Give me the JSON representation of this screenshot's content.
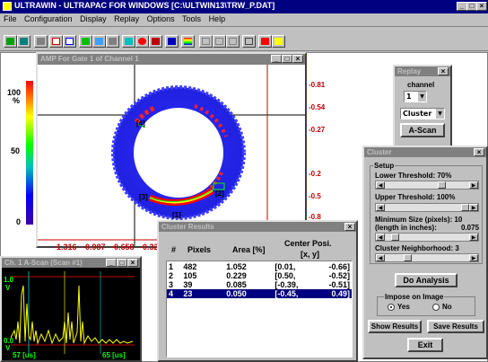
{
  "app": {
    "title": "ULTRAWIN - ULTRAPAC FOR WINDOWS  [C:\\ULTWIN13\\TRW_P.DAT]",
    "menu": [
      "File",
      "Configuration",
      "Display",
      "Replay",
      "Options",
      "Tools",
      "Help"
    ]
  },
  "scale": {
    "top_label": "100",
    "top_unit": "%",
    "mid_label": "50",
    "bottom_label": "0"
  },
  "amp_window": {
    "title": "AMP For Gate 1 of Channel 1",
    "right_labels": [
      "-0.81",
      "-0.54",
      "-0.27",
      "-0.2",
      "-0.5",
      "-0.8"
    ],
    "bottom_labels": [
      "-1.316",
      "-0.987",
      "-0.658",
      "-0.329"
    ],
    "cluster_labels": [
      "[1]",
      "[2]",
      "[3]",
      "[4]"
    ]
  },
  "replay": {
    "title": "Replay",
    "channel_label": "channel",
    "channel_value": "1",
    "mode_value": "Cluster",
    "ascan_button": "A-Scan"
  },
  "cluster_dialog": {
    "title": "Cluster",
    "setup_label": "Setup",
    "lower_threshold": "Lower Threshold:  70%",
    "upper_threshold": "Upper Threshold:  100%",
    "min_size_label": "Minimum Size (pixels): 10",
    "min_size_inches": "(length in inches):",
    "min_size_inches_value": "0.075",
    "neighborhood": "Cluster Neighborhood:  3",
    "do_analysis": "Do Analysis",
    "impose_label": "Impose on Image",
    "yes": "Yes",
    "no": "No",
    "impose_selected": "Yes",
    "show_results": "Show Results",
    "save_results": "Save Results",
    "exit": "Exit",
    "sliders": {
      "lower": 0.7,
      "upper": 1.0,
      "min_size": 0.08,
      "neighborhood": 0.25
    }
  },
  "cluster_results": {
    "title": "Cluster Results",
    "headers": [
      "#",
      "Pixels",
      "Area [%]",
      "Center Posi.",
      "[x, y]"
    ],
    "rows": [
      {
        "n": "1",
        "pixels": "482",
        "area": "1.052",
        "x": "[0.01,",
        "y": "-0.66]"
      },
      {
        "n": "2",
        "pixels": "105",
        "area": "0.229",
        "x": "[0.50,",
        "y": "-0.52]"
      },
      {
        "n": "3",
        "pixels": "39",
        "area": "0.085",
        "x": "[-0.39,",
        "y": "-0.51]"
      },
      {
        "n": "4",
        "pixels": "23",
        "area": "0.050",
        "x": "[-0.45,",
        "y": "0.49]"
      }
    ],
    "selected_row": 3
  },
  "ascan_window": {
    "title": "Ch. 1 A-Scan (Scan #1)",
    "y_top": "1.0",
    "y_top_unit": "V",
    "y_bottom": "0.0",
    "y_bottom_unit": "V",
    "x_left": "57 [us]",
    "x_right": "65 [us]"
  }
}
